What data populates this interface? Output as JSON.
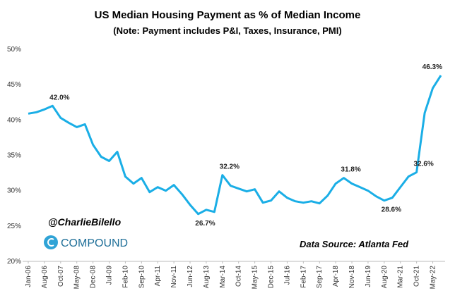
{
  "chart_data": {
    "type": "line",
    "title": "US Median Housing Payment as % of Median Income",
    "subtitle": "(Note: Payment includes P&I, Taxes, Insurance, PMI)",
    "annotations": [
      "@CharlieBilello",
      "COMPOUND",
      "Data Source: Atlanta Fed"
    ],
    "categories": [
      "Jan-06",
      null,
      "Aug-06",
      null,
      "Oct-07",
      null,
      "May-08",
      null,
      "Dec-08",
      null,
      "Jul-09",
      null,
      "Feb-10",
      null,
      "Sep-10",
      null,
      "Apr-11",
      null,
      "Nov-11",
      null,
      "Jun-12",
      null,
      "Aug-13",
      null,
      "Mar-14",
      null,
      "Oct-14",
      null,
      "May-15",
      null,
      "Dec-15",
      null,
      "Jul-16",
      null,
      "Feb-17",
      null,
      "Sep-17",
      null,
      "Apr-18",
      null,
      "Nov-18",
      null,
      "Jun-19",
      null,
      "Aug-20",
      null,
      "Mar-21",
      null,
      "Oct-21",
      null,
      "May-22",
      null
    ],
    "series": [
      {
        "name": "US Median Housing Payment as % of Median Income",
        "color": "#1aaee6",
        "values": [
          40.9,
          41.1,
          41.5,
          42.0,
          40.3,
          39.6,
          39.0,
          39.4,
          36.5,
          34.8,
          34.2,
          35.5,
          32.0,
          31.0,
          31.8,
          29.8,
          30.5,
          30.0,
          30.8,
          29.5,
          28.0,
          26.7,
          27.3,
          27.0,
          32.2,
          30.7,
          30.3,
          29.9,
          30.2,
          28.3,
          28.6,
          29.9,
          29.0,
          28.5,
          28.3,
          28.5,
          28.2,
          29.3,
          31.0,
          31.8,
          31.0,
          30.5,
          30.0,
          29.2,
          28.6,
          29.0,
          30.5,
          32.0,
          32.6,
          41.0,
          44.5,
          46.3
        ],
        "value_labels": [
          null,
          null,
          null,
          "42.0%",
          null,
          null,
          null,
          null,
          null,
          null,
          null,
          null,
          null,
          null,
          null,
          null,
          null,
          null,
          null,
          null,
          null,
          "26.7%",
          null,
          null,
          "32.2%",
          null,
          null,
          null,
          null,
          null,
          null,
          null,
          null,
          null,
          null,
          null,
          null,
          null,
          null,
          "31.8%",
          null,
          null,
          null,
          null,
          "28.6%",
          null,
          null,
          null,
          "32.6%",
          null,
          null,
          "46.3%"
        ]
      }
    ],
    "ylim": [
      20,
      50
    ],
    "yticks": [
      {
        "value": 20,
        "label": "20%"
      },
      {
        "value": 25,
        "label": "25%"
      },
      {
        "value": 30,
        "label": "30%"
      },
      {
        "value": 35,
        "label": "35%"
      },
      {
        "value": 40,
        "label": "40%"
      },
      {
        "value": 45,
        "label": "45%"
      },
      {
        "value": 50,
        "label": "50%"
      }
    ],
    "grid": false
  }
}
